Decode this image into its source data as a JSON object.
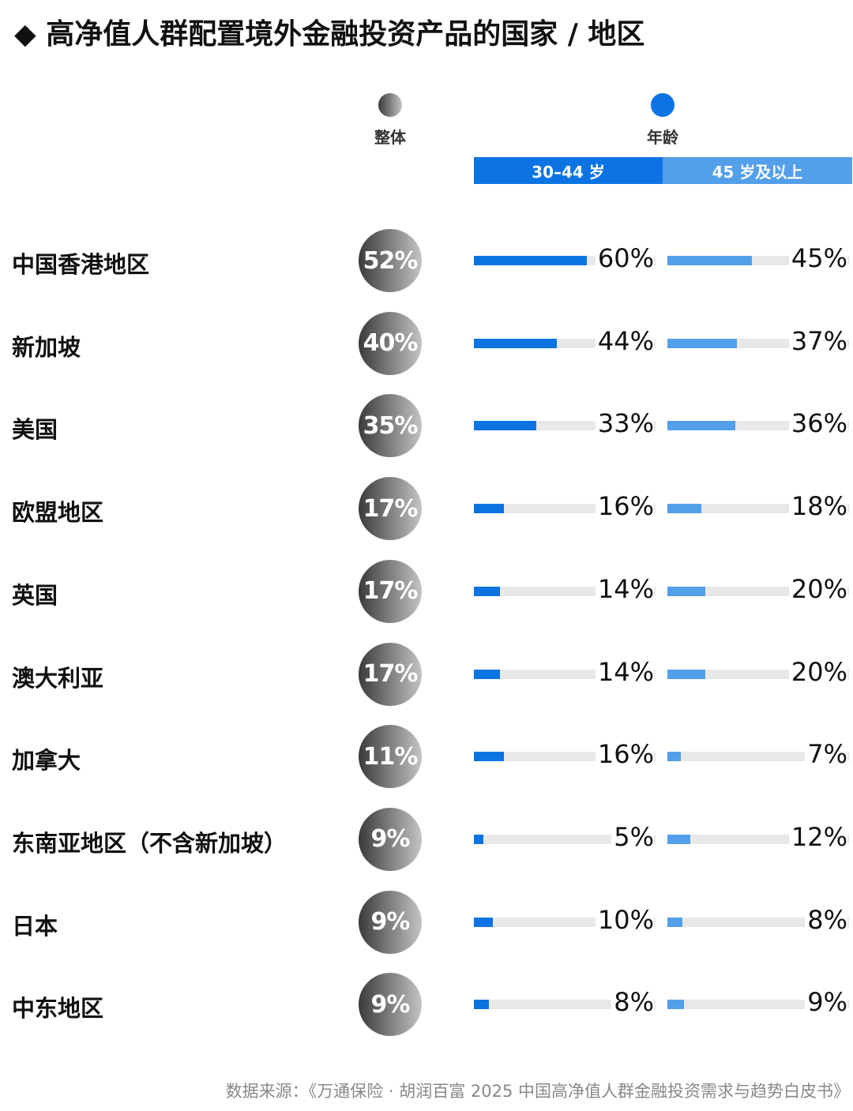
{
  "title": "◆ 高净值人群配置境外金融投资产品的国家 / 地区",
  "legend": {
    "overall": "整体",
    "age": "年龄",
    "age_groups": [
      "30–44 岁",
      "45 岁及以上"
    ]
  },
  "colors": {
    "age_30_44": "#0c74e2",
    "age_45_plus": "#539fe9",
    "track": "#e8e8e8"
  },
  "chart_data": {
    "type": "bar",
    "categories": [
      "中国香港地区",
      "新加坡",
      "美国",
      "欧盟地区",
      "英国",
      "澳大利亚",
      "加拿大",
      "东南亚地区（不含新加坡）",
      "日本",
      "中东地区"
    ],
    "series": [
      {
        "name": "整体",
        "values": [
          52,
          40,
          35,
          17,
          17,
          17,
          11,
          9,
          9,
          9
        ]
      },
      {
        "name": "30–44 岁",
        "values": [
          60,
          44,
          33,
          16,
          14,
          14,
          16,
          5,
          10,
          8
        ]
      },
      {
        "name": "45 岁及以上",
        "values": [
          45,
          37,
          36,
          18,
          20,
          20,
          7,
          12,
          8,
          9
        ]
      }
    ],
    "unit": "%"
  },
  "source": "数据来源：《万通保险 · 胡润百富 2025 中国高净值人群金融投资需求与趋势白皮书》"
}
